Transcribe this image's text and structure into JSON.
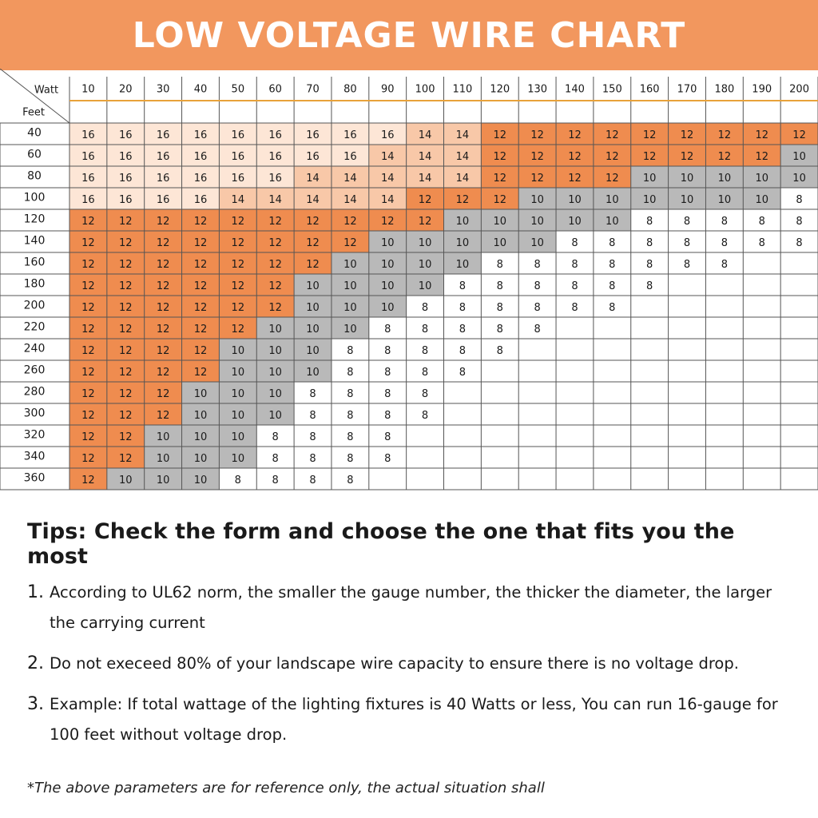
{
  "title": "LOW VOLTAGE WIRE CHART",
  "colors": {
    "banner": "#f2975e",
    "g16": "#fde6d6",
    "g14": "#f8c8a8",
    "g12": "#ef8c4f",
    "g10": "#b9b9b9",
    "g8": "#ffffff",
    "header_rule": "#e8a23a"
  },
  "chart_data": {
    "type": "table",
    "corner_labels": {
      "columns": "Watt",
      "rows": "Feet"
    },
    "watts": [
      10,
      20,
      30,
      40,
      50,
      60,
      70,
      80,
      90,
      100,
      110,
      120,
      130,
      140,
      150,
      160,
      170,
      180,
      190,
      200
    ],
    "rows": [
      {
        "feet": 40,
        "gauges": [
          16,
          16,
          16,
          16,
          16,
          16,
          16,
          16,
          16,
          14,
          14,
          12,
          12,
          12,
          12,
          12,
          12,
          12,
          12,
          12
        ]
      },
      {
        "feet": 60,
        "gauges": [
          16,
          16,
          16,
          16,
          16,
          16,
          16,
          16,
          14,
          14,
          14,
          12,
          12,
          12,
          12,
          12,
          12,
          12,
          12,
          10
        ]
      },
      {
        "feet": 80,
        "gauges": [
          16,
          16,
          16,
          16,
          16,
          16,
          14,
          14,
          14,
          14,
          14,
          12,
          12,
          12,
          12,
          10,
          10,
          10,
          10,
          10
        ]
      },
      {
        "feet": 100,
        "gauges": [
          16,
          16,
          16,
          16,
          14,
          14,
          14,
          14,
          14,
          12,
          12,
          12,
          10,
          10,
          10,
          10,
          10,
          10,
          10,
          8
        ]
      },
      {
        "feet": 120,
        "gauges": [
          12,
          12,
          12,
          12,
          12,
          12,
          12,
          12,
          12,
          12,
          10,
          10,
          10,
          10,
          10,
          8,
          8,
          8,
          8,
          8
        ]
      },
      {
        "feet": 140,
        "gauges": [
          12,
          12,
          12,
          12,
          12,
          12,
          12,
          12,
          10,
          10,
          10,
          10,
          10,
          8,
          8,
          8,
          8,
          8,
          8,
          8
        ]
      },
      {
        "feet": 160,
        "gauges": [
          12,
          12,
          12,
          12,
          12,
          12,
          12,
          10,
          10,
          10,
          10,
          8,
          8,
          8,
          8,
          8,
          8,
          8,
          null,
          null
        ]
      },
      {
        "feet": 180,
        "gauges": [
          12,
          12,
          12,
          12,
          12,
          12,
          10,
          10,
          10,
          10,
          8,
          8,
          8,
          8,
          8,
          8,
          null,
          null,
          null,
          null
        ]
      },
      {
        "feet": 200,
        "gauges": [
          12,
          12,
          12,
          12,
          12,
          12,
          10,
          10,
          10,
          8,
          8,
          8,
          8,
          8,
          8,
          null,
          null,
          null,
          null,
          null
        ]
      },
      {
        "feet": 220,
        "gauges": [
          12,
          12,
          12,
          12,
          12,
          10,
          10,
          10,
          8,
          8,
          8,
          8,
          8,
          null,
          null,
          null,
          null,
          null,
          null,
          null
        ]
      },
      {
        "feet": 240,
        "gauges": [
          12,
          12,
          12,
          12,
          10,
          10,
          10,
          8,
          8,
          8,
          8,
          8,
          null,
          null,
          null,
          null,
          null,
          null,
          null,
          null
        ]
      },
      {
        "feet": 260,
        "gauges": [
          12,
          12,
          12,
          12,
          10,
          10,
          10,
          8,
          8,
          8,
          8,
          null,
          null,
          null,
          null,
          null,
          null,
          null,
          null,
          null
        ]
      },
      {
        "feet": 280,
        "gauges": [
          12,
          12,
          12,
          10,
          10,
          10,
          8,
          8,
          8,
          8,
          null,
          null,
          null,
          null,
          null,
          null,
          null,
          null,
          null,
          null
        ]
      },
      {
        "feet": 300,
        "gauges": [
          12,
          12,
          12,
          10,
          10,
          10,
          8,
          8,
          8,
          8,
          null,
          null,
          null,
          null,
          null,
          null,
          null,
          null,
          null,
          null
        ]
      },
      {
        "feet": 320,
        "gauges": [
          12,
          12,
          10,
          10,
          10,
          8,
          8,
          8,
          8,
          null,
          null,
          null,
          null,
          null,
          null,
          null,
          null,
          null,
          null,
          null
        ]
      },
      {
        "feet": 340,
        "gauges": [
          12,
          12,
          10,
          10,
          10,
          8,
          8,
          8,
          8,
          null,
          null,
          null,
          null,
          null,
          null,
          null,
          null,
          null,
          null,
          null
        ]
      },
      {
        "feet": 360,
        "gauges": [
          12,
          10,
          10,
          10,
          8,
          8,
          8,
          8,
          null,
          null,
          null,
          null,
          null,
          null,
          null,
          null,
          null,
          null,
          null,
          null
        ]
      }
    ]
  },
  "tips": {
    "title": "Tips: Check the form and choose the one that fits you the most",
    "items": [
      {
        "num": "1.",
        "text": "According to UL62 norm, the smaller the gauge number, the thicker the diameter, the larger the carrying current"
      },
      {
        "num": "2.",
        "text": "Do not execeed 80% of your landscape wire capacity to ensure there is no voltage drop."
      },
      {
        "num": "3.",
        "text": "Example: If total wattage of the lighting fixtures is 40 Watts or less, You can run 16-gauge for 100 feet without voltage drop."
      }
    ]
  },
  "note": "*The above parameters are for reference only, the actual situation shall"
}
